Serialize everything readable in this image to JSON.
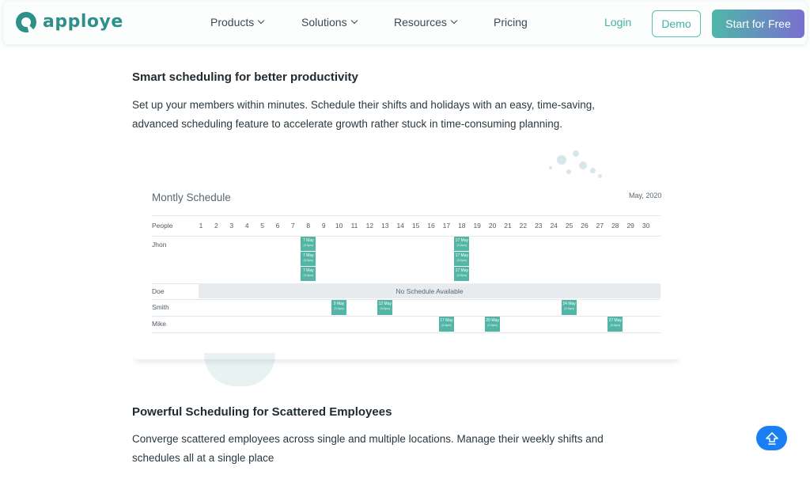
{
  "brand": {
    "name": "apploye",
    "color": "#2f8f8a"
  },
  "nav": {
    "items": [
      {
        "label": "Products",
        "has_dropdown": true
      },
      {
        "label": "Solutions",
        "has_dropdown": true
      },
      {
        "label": "Resources",
        "has_dropdown": true
      },
      {
        "label": "Pricing",
        "has_dropdown": false
      }
    ],
    "login_label": "Login",
    "demo_label": "Demo",
    "start_label": "Start for Free"
  },
  "section1": {
    "heading": "Smart scheduling for better productivity",
    "body_line1": "Set up your members within minutes. Schedule their shifts and holidays with an easy, time-saving,",
    "body_line2": "advanced scheduling feature to accelerate growth rather stuck in time-consuming planning."
  },
  "schedule": {
    "title": "Montly Schedule",
    "month": "May, 2020",
    "people_header": "People",
    "days": [
      "1",
      "2",
      "3",
      "4",
      "5",
      "6",
      "7",
      "8",
      "9",
      "10",
      "11",
      "12",
      "13",
      "14",
      "15",
      "16",
      "17",
      "18",
      "19",
      "20",
      "21",
      "22",
      "23",
      "24",
      "25",
      "26",
      "27",
      "28",
      "29",
      "30"
    ],
    "people": [
      "Jhon",
      "Doe",
      "Smith",
      "Mike"
    ],
    "no_schedule_text": "No Schedule Available",
    "shifts": [
      {
        "person": "Jhon",
        "day": 8,
        "slot": 0,
        "label": "7 May",
        "time": "(9-5pm)"
      },
      {
        "person": "Jhon",
        "day": 8,
        "slot": 1,
        "label": "7 May",
        "time": "(9-5pm)"
      },
      {
        "person": "Jhon",
        "day": 8,
        "slot": 2,
        "label": "7 May",
        "time": "(9-5pm)"
      },
      {
        "person": "Jhon",
        "day": 18,
        "slot": 0,
        "label": "17 May",
        "time": "(9-5pm)"
      },
      {
        "person": "Jhon",
        "day": 18,
        "slot": 1,
        "label": "17 May",
        "time": "(9-5pm)"
      },
      {
        "person": "Jhon",
        "day": 18,
        "slot": 2,
        "label": "17 May",
        "time": "(9-5pm)"
      },
      {
        "person": "Smith",
        "day": 10,
        "slot": 0,
        "label": "9 May",
        "time": "(9-5pm)"
      },
      {
        "person": "Smith",
        "day": 13,
        "slot": 0,
        "label": "12 May",
        "time": "(9-5pm)"
      },
      {
        "person": "Smith",
        "day": 25,
        "slot": 0,
        "label": "24 May",
        "time": "(9-5pm)"
      },
      {
        "person": "Mike",
        "day": 17,
        "slot": 0,
        "label": "17 May",
        "time": "(9-5pm)"
      },
      {
        "person": "Mike",
        "day": 20,
        "slot": 0,
        "label": "20 May",
        "time": "(9-5pm)"
      },
      {
        "person": "Mike",
        "day": 28,
        "slot": 0,
        "label": "27 May",
        "time": "(9-5pm)"
      }
    ],
    "accent_color": "#53b5a5"
  },
  "section2": {
    "heading": "Powerful Scheduling for Scattered Employees",
    "body_line1": "Converge scattered employees across single and multiple locations. Manage their weekly shifts and",
    "body_line2": "schedules all at a single place"
  },
  "scroll_top": {
    "icon": "arrow-up-icon",
    "color": "#1a7ef5"
  }
}
